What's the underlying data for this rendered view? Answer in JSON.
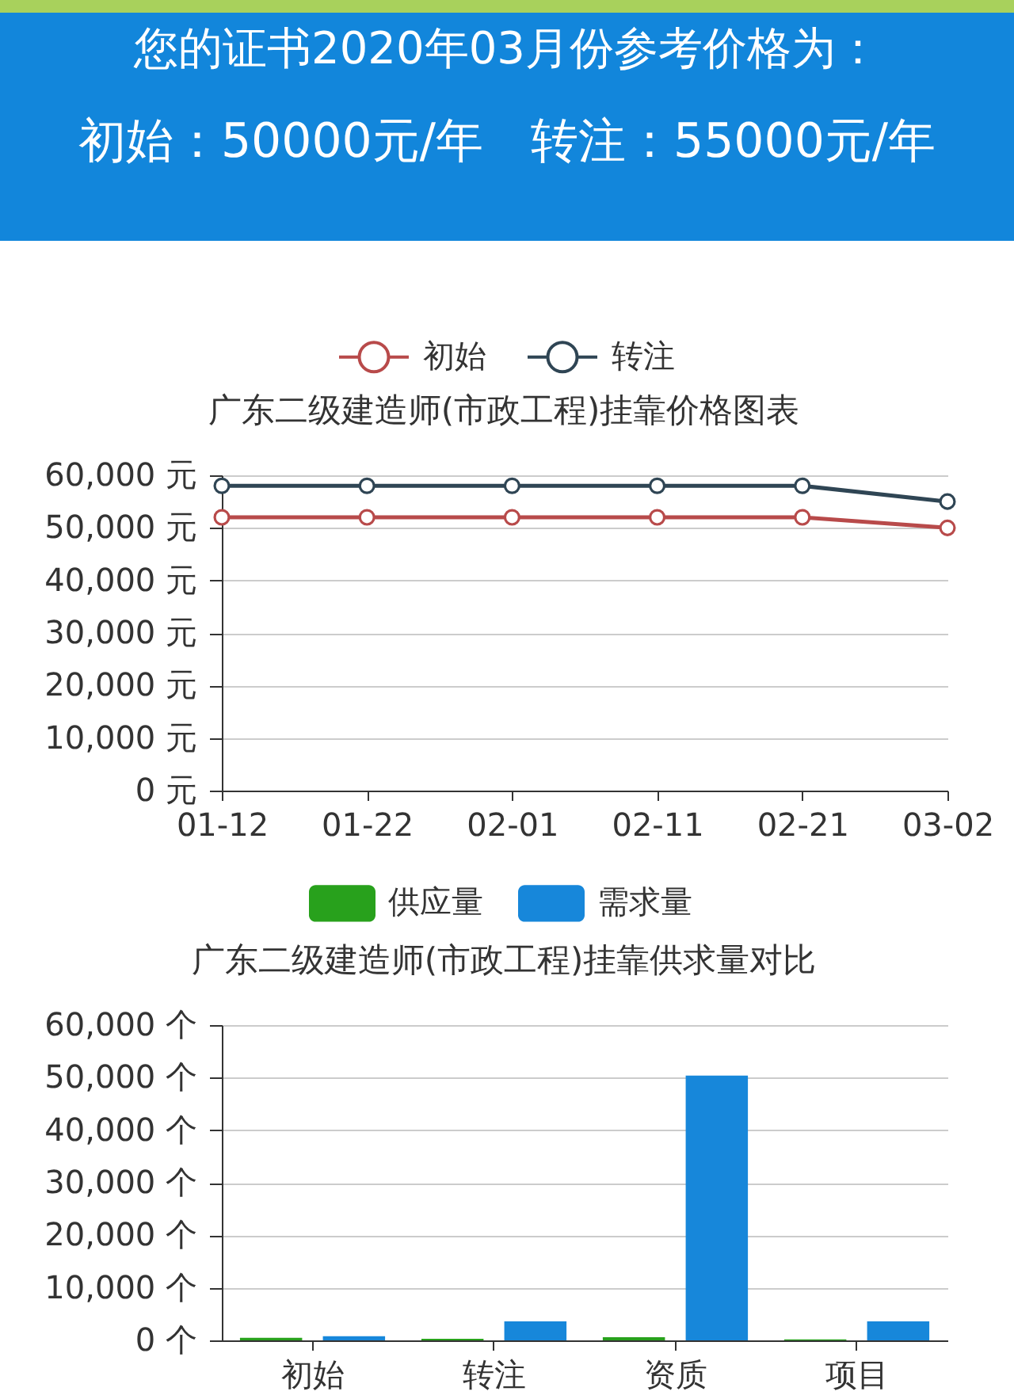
{
  "chart_data": [
    {
      "type": "other",
      "title": "您的证书2020年03月份参考价格为：",
      "annotations": [
        "初始：50000元/年",
        "转注：55000元/年"
      ]
    },
    {
      "type": "line",
      "title": "广东二级建造师(市政工程)挂靠价格图表",
      "categories": [
        "01-12",
        "01-22",
        "02-01",
        "02-11",
        "02-21",
        "03-02"
      ],
      "series": [
        {
          "name": "初始",
          "color": "#b84a4a",
          "values": [
            52000,
            52000,
            52000,
            52000,
            52000,
            50000
          ]
        },
        {
          "name": "转注",
          "color": "#2f4554",
          "values": [
            58000,
            58000,
            58000,
            58000,
            58000,
            55000
          ]
        }
      ],
      "ylim": [
        0,
        60000
      ],
      "yticks": [
        {
          "value": 0,
          "label": "0 元"
        },
        {
          "value": 10000,
          "label": "10,000 元"
        },
        {
          "value": 20000,
          "label": "20,000 元"
        },
        {
          "value": 30000,
          "label": "30,000 元"
        },
        {
          "value": 40000,
          "label": "40,000 元"
        },
        {
          "value": 50000,
          "label": "50,000 元"
        },
        {
          "value": 60000,
          "label": "60,000 元"
        }
      ],
      "grid": "y",
      "legend": "top",
      "marker": "circle"
    },
    {
      "type": "bar",
      "title": "广东二级建造师(市政工程)挂靠供求量对比",
      "categories": [
        "初始",
        "转注",
        "资质",
        "项目"
      ],
      "series": [
        {
          "name": "供应量",
          "color": "#28a11c",
          "values": [
            500,
            300,
            600,
            200
          ]
        },
        {
          "name": "需求量",
          "color": "#1787da",
          "values": [
            800,
            3600,
            50400,
            3600
          ]
        }
      ],
      "ylim": [
        0,
        60000
      ],
      "yticks": [
        {
          "value": 0,
          "label": "0 个"
        },
        {
          "value": 10000,
          "label": "10,000 个"
        },
        {
          "value": 20000,
          "label": "20,000 个"
        },
        {
          "value": 30000,
          "label": "30,000 个"
        },
        {
          "value": 40000,
          "label": "40,000 个"
        },
        {
          "value": 50000,
          "label": "50,000 个"
        },
        {
          "value": 60000,
          "label": "60,000 个"
        }
      ],
      "grid": "y",
      "legend": "top"
    }
  ]
}
